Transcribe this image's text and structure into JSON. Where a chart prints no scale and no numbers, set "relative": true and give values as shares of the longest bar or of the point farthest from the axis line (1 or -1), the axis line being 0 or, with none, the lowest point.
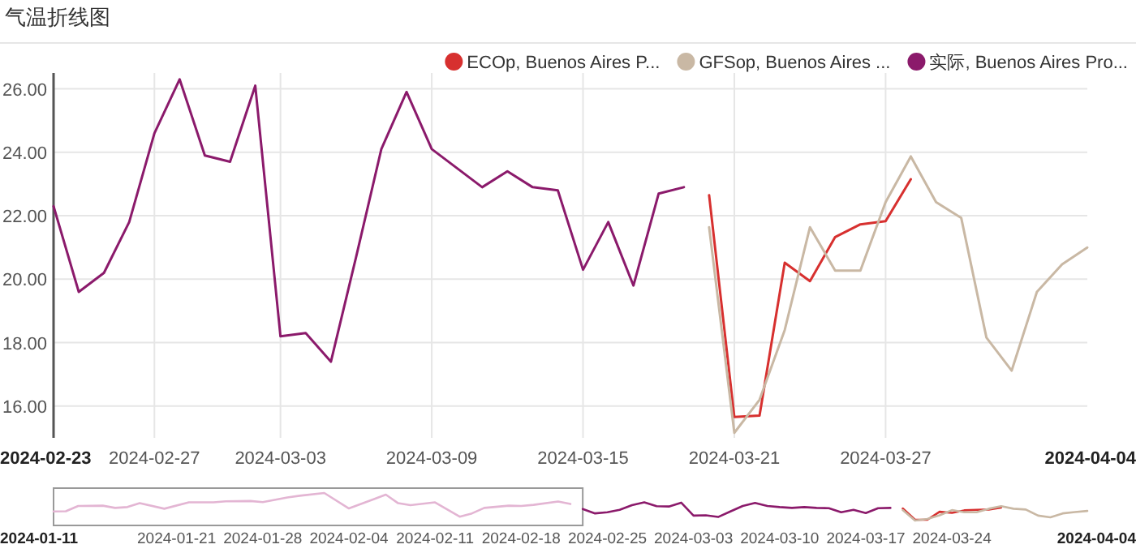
{
  "chart_data": [
    {
      "type": "line",
      "title": "气温折线图",
      "xlim": [
        "2024-02-23",
        "2024-04-04"
      ],
      "xticks": [
        "2024-02-23",
        "2024-02-27",
        "2024-03-03",
        "2024-03-09",
        "2024-03-15",
        "2024-03-21",
        "2024-03-27",
        "2024-04-04"
      ],
      "ylim": [
        15,
        26.5
      ],
      "yticks": [
        {
          "value": 16,
          "label": "16.00"
        },
        {
          "value": 18,
          "label": "18.00"
        },
        {
          "value": 20,
          "label": "20.00"
        },
        {
          "value": 22,
          "label": "22.00"
        },
        {
          "value": 24,
          "label": "24.00"
        },
        {
          "value": 26,
          "label": "26.00"
        }
      ],
      "grid": true,
      "legend": "top right",
      "series": [
        {
          "name": "ECOp, Buenos Aires P...",
          "color": "#d7302f",
          "x": [
            "2024-03-20",
            "2024-03-21",
            "2024-03-22",
            "2024-03-23",
            "2024-03-24",
            "2024-03-25",
            "2024-03-26",
            "2024-03-27",
            "2024-03-28"
          ],
          "values": [
            22.65,
            15.66,
            15.7,
            20.52,
            19.94,
            21.33,
            21.73,
            21.83,
            23.15
          ]
        },
        {
          "name": "GFSop, Buenos Aires ...",
          "color": "#c9b8a4",
          "x": [
            "2024-03-20",
            "2024-03-21",
            "2024-03-22",
            "2024-03-23",
            "2024-03-24",
            "2024-03-25",
            "2024-03-26",
            "2024-03-27",
            "2024-03-28",
            "2024-03-29",
            "2024-03-30",
            "2024-03-31",
            "2024-04-01",
            "2024-04-02",
            "2024-04-03",
            "2024-04-04"
          ],
          "values": [
            21.64,
            15.16,
            16.2,
            18.4,
            21.64,
            20.27,
            20.27,
            22.43,
            23.87,
            22.43,
            21.93,
            18.16,
            17.12,
            19.6,
            20.47,
            21.0
          ]
        },
        {
          "name": "实际, Buenos Aires Pro...",
          "color": "#8b1a6b",
          "x": [
            "2024-02-23",
            "2024-02-24",
            "2024-02-25",
            "2024-02-26",
            "2024-02-27",
            "2024-02-28",
            "2024-02-29",
            "2024-03-01",
            "2024-03-02",
            "2024-03-03",
            "2024-03-04",
            "2024-03-05",
            "2024-03-06",
            "2024-03-07",
            "2024-03-08",
            "2024-03-09",
            "2024-03-10",
            "2024-03-11",
            "2024-03-12",
            "2024-03-13",
            "2024-03-14",
            "2024-03-15",
            "2024-03-16",
            "2024-03-17",
            "2024-03-18",
            "2024-03-19"
          ],
          "values": [
            22.3,
            19.6,
            20.2,
            21.8,
            24.6,
            26.3,
            23.9,
            23.7,
            26.1,
            18.2,
            18.3,
            17.4,
            20.7,
            24.1,
            25.9,
            24.1,
            23.5,
            22.9,
            23.4,
            22.9,
            22.8,
            20.3,
            21.8,
            19.8,
            22.7,
            22.9
          ]
        }
      ]
    },
    {
      "type": "line",
      "relative": true,
      "tick_labels": "x",
      "xlim": [
        "2024-01-11",
        "2024-04-04"
      ],
      "xticks": [
        "2024-01-11",
        "2024-01-21",
        "2024-01-28",
        "2024-02-04",
        "2024-02-11",
        "2024-02-18",
        "2024-02-25",
        "2024-03-03",
        "2024-03-10",
        "2024-03-17",
        "2024-03-24",
        "2024-04-04"
      ],
      "series": [
        {
          "color": "#e3b5d3",
          "x": [
            "2024-01-11",
            "2024-01-12",
            "2024-01-13",
            "2024-01-15",
            "2024-01-16",
            "2024-01-17",
            "2024-01-18",
            "2024-01-20",
            "2024-01-22",
            "2024-01-24",
            "2024-01-25",
            "2024-01-27",
            "2024-01-28",
            "2024-01-30",
            "2024-01-31",
            "2024-02-02",
            "2024-02-04",
            "2024-02-06",
            "2024-02-07",
            "2024-02-08",
            "2024-02-09",
            "2024-02-11",
            "2024-02-13",
            "2024-02-14",
            "2024-02-15",
            "2024-02-17",
            "2024-02-18",
            "2024-02-19",
            "2024-02-21",
            "2024-02-22"
          ],
          "values": [
            0.33,
            0.34,
            0.53,
            0.54,
            0.46,
            0.49,
            0.63,
            0.43,
            0.66,
            0.66,
            0.7,
            0.71,
            0.67,
            0.84,
            0.9,
            1.0,
            0.44,
            0.77,
            0.94,
            0.63,
            0.56,
            0.66,
            0.14,
            0.26,
            0.46,
            0.54,
            0.53,
            0.57,
            0.69,
            0.6
          ]
        },
        {
          "color": "#8b1a6b",
          "x": [
            "2024-02-23",
            "2024-02-24",
            "2024-02-25",
            "2024-02-26",
            "2024-02-27",
            "2024-02-28",
            "2024-02-29",
            "2024-03-01",
            "2024-03-02",
            "2024-03-03",
            "2024-03-04",
            "2024-03-05",
            "2024-03-06",
            "2024-03-07",
            "2024-03-08",
            "2024-03-09",
            "2024-03-10",
            "2024-03-11",
            "2024-03-12",
            "2024-03-13",
            "2024-03-14",
            "2024-03-15",
            "2024-03-16",
            "2024-03-17",
            "2024-03-18",
            "2024-03-19"
          ],
          "values": [
            0.42,
            0.26,
            0.3,
            0.39,
            0.56,
            0.66,
            0.52,
            0.51,
            0.65,
            0.18,
            0.19,
            0.13,
            0.33,
            0.53,
            0.64,
            0.53,
            0.49,
            0.46,
            0.49,
            0.46,
            0.45,
            0.3,
            0.39,
            0.27,
            0.45,
            0.46
          ]
        },
        {
          "color": "#d7302f",
          "x": [
            "2024-03-20",
            "2024-03-21",
            "2024-03-22",
            "2024-03-23",
            "2024-03-24",
            "2024-03-25",
            "2024-03-26",
            "2024-03-27",
            "2024-03-28"
          ],
          "values": [
            0.44,
            0.03,
            0.03,
            0.32,
            0.28,
            0.37,
            0.39,
            0.4,
            0.47
          ]
        },
        {
          "color": "#c9b8a4",
          "x": [
            "2024-03-20",
            "2024-03-21",
            "2024-03-22",
            "2024-03-23",
            "2024-03-24",
            "2024-03-25",
            "2024-03-26",
            "2024-03-27",
            "2024-03-28",
            "2024-03-29",
            "2024-03-30",
            "2024-03-31",
            "2024-04-01",
            "2024-04-02",
            "2024-04-03",
            "2024-04-04"
          ],
          "values": [
            0.38,
            0.0,
            0.06,
            0.19,
            0.38,
            0.3,
            0.3,
            0.43,
            0.52,
            0.43,
            0.4,
            0.18,
            0.12,
            0.26,
            0.31,
            0.35
          ]
        }
      ]
    }
  ]
}
